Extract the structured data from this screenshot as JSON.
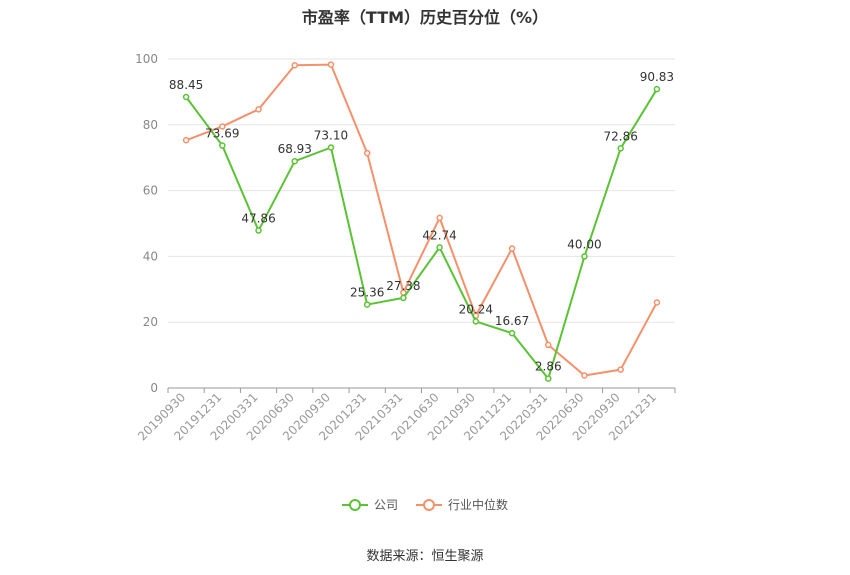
{
  "chart_data": {
    "type": "line",
    "title": "市盈率（TTM）历史百分位（%）",
    "categories": [
      "20190930",
      "20191231",
      "20200331",
      "20200630",
      "20200930",
      "20201231",
      "20210331",
      "20210630",
      "20210930",
      "20211231",
      "20220331",
      "20220630",
      "20220930",
      "20221231"
    ],
    "series": [
      {
        "name": "公司",
        "color": "#5ac334",
        "values": [
          88.45,
          73.69,
          47.86,
          68.93,
          73.1,
          25.36,
          27.38,
          42.74,
          20.24,
          16.67,
          2.86,
          40.0,
          72.86,
          90.83
        ],
        "data_labels": [
          "88.45",
          "73.69",
          "47.86",
          "68.93",
          "73.10",
          "25.36",
          "27.38",
          "42.74",
          "20.24",
          "16.67",
          "2.86",
          "40.00",
          "72.86",
          "90.83"
        ]
      },
      {
        "name": "行业中位数",
        "color": "#f4916a",
        "values": [
          75.3,
          79.5,
          84.7,
          98.1,
          98.3,
          71.4,
          29.0,
          51.7,
          22.0,
          42.4,
          13.1,
          3.8,
          5.6,
          26.0
        ]
      }
    ],
    "yticks": [
      "0",
      "20",
      "40",
      "60",
      "80",
      "100"
    ],
    "ylim": [
      0,
      100
    ],
    "grid": true,
    "legend_position": "bottom"
  },
  "source_text": "数据来源：恒生聚源"
}
